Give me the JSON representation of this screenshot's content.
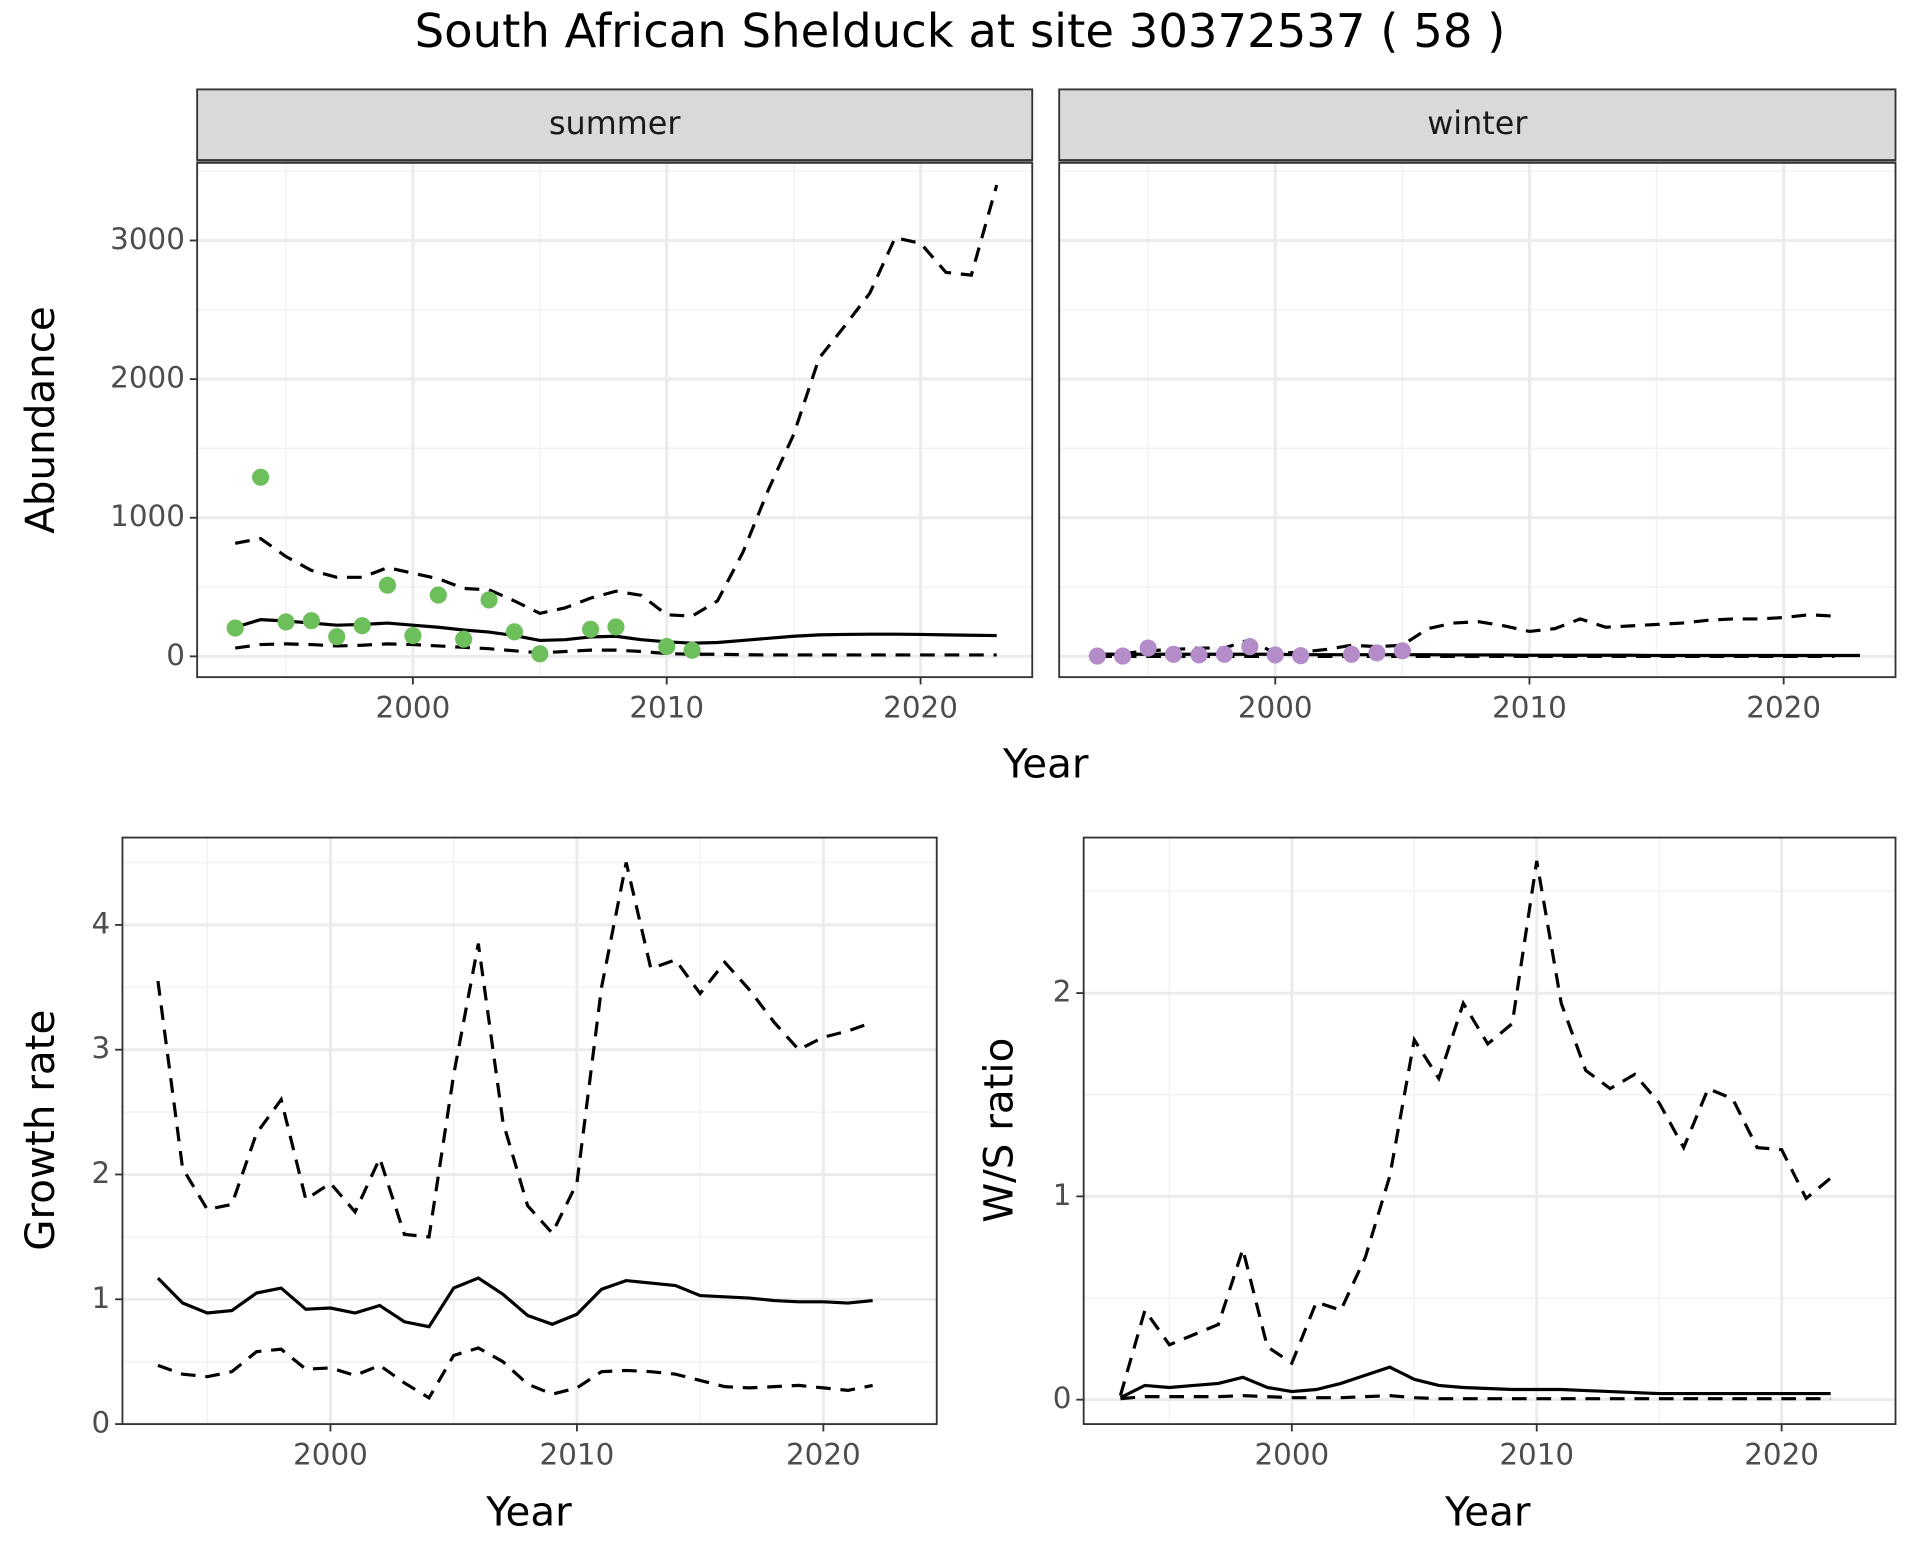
{
  "title": "South African Shelduck at site 30372537 ( 58 )",
  "chart_data": [
    {
      "type": "line",
      "xlabel": "Year",
      "ylabel": "Abundance",
      "x": [
        1993,
        1994,
        1995,
        1996,
        1997,
        1998,
        1999,
        2000,
        2001,
        2002,
        2003,
        2004,
        2005,
        2006,
        2007,
        2008,
        2009,
        2010,
        2011,
        2012,
        2013,
        2014,
        2015,
        2016,
        2017,
        2018,
        2019,
        2020,
        2021,
        2022,
        2023
      ],
      "xlim": [
        1991.5,
        2024.4
      ],
      "xticks": [
        2000,
        2010,
        2020
      ],
      "xminorticks": [
        1995,
        2005,
        2015
      ],
      "ylim": [
        -150,
        3560
      ],
      "yticks": [
        0,
        1000,
        2000,
        3000
      ],
      "yminorticks": [
        500,
        1500,
        2500,
        3500
      ],
      "grid": true,
      "facets": [
        {
          "strip": "summer",
          "series": [
            {
              "mark": "line",
              "dash": false,
              "color": "#000000",
              "values": [
                210,
                265,
                255,
                240,
                225,
                230,
                240,
                225,
                210,
                190,
                175,
                150,
                115,
                120,
                140,
                145,
                120,
                105,
                95,
                100,
                115,
                130,
                145,
                155,
                158,
                160,
                160,
                158,
                155,
                152,
                150
              ]
            },
            {
              "mark": "line",
              "dash": true,
              "color": "#000000",
              "values": [
                815,
                850,
                720,
                620,
                570,
                570,
                640,
                600,
                560,
                490,
                480,
                400,
                310,
                350,
                420,
                470,
                440,
                300,
                290,
                400,
                750,
                1200,
                1600,
                2150,
                2380,
                2620,
                3020,
                2980,
                2770,
                2750,
                3400
              ]
            },
            {
              "mark": "line",
              "dash": true,
              "color": "#000000",
              "values": [
                60,
                85,
                90,
                85,
                75,
                80,
                90,
                85,
                75,
                65,
                55,
                40,
                25,
                35,
                45,
                45,
                35,
                20,
                15,
                15,
                12,
                10,
                10,
                10,
                10,
                10,
                10,
                10,
                10,
                10,
                10
              ]
            },
            {
              "mark": "point",
              "color": "#6dbf5b",
              "values": [
                204,
                1292,
                248,
                257,
                142,
                221,
                513,
                150,
                442,
                124,
                407,
                177,
                18,
                null,
                195,
                212,
                null,
                71,
                44,
                null,
                null,
                null,
                null,
                null,
                null,
                null,
                null,
                null,
                null,
                null,
                null
              ]
            }
          ]
        },
        {
          "strip": "winter",
          "series": [
            {
              "mark": "line",
              "dash": false,
              "color": "#000000",
              "values": [
                15,
                15,
                15,
                15,
                15,
                15,
                15,
                15,
                12,
                12,
                12,
                12,
                12,
                12,
                10,
                10,
                10,
                8,
                8,
                8,
                8,
                8,
                6,
                6,
                6,
                6,
                6,
                6,
                6,
                6,
                6
              ]
            },
            {
              "mark": "line",
              "dash": true,
              "color": "#000000",
              "values": [
                10,
                20,
                40,
                50,
                60,
                60,
                120,
                20,
                30,
                50,
                80,
                70,
                80,
                200,
                240,
                250,
                220,
                180,
                200,
                270,
                210,
                220,
                230,
                240,
                260,
                270,
                270,
                280,
                300,
                290,
                null
              ]
            },
            {
              "mark": "line",
              "dash": true,
              "color": "#000000",
              "values": [
                0,
                0,
                0,
                0,
                0,
                0,
                0,
                0,
                0,
                0,
                0,
                0,
                0,
                0,
                0,
                0,
                0,
                0,
                0,
                0,
                0,
                0,
                0,
                0,
                0,
                0,
                0,
                0,
                0,
                0,
                null
              ]
            },
            {
              "mark": "point",
              "color": "#b38cc9",
              "values": [
                2,
                2,
                60,
                15,
                10,
                15,
                70,
                10,
                5,
                null,
                15,
                25,
                40,
                null,
                null,
                null,
                null,
                null,
                null,
                null,
                null,
                null,
                null,
                null,
                null,
                null,
                null,
                null,
                null,
                null,
                null
              ]
            }
          ]
        }
      ]
    },
    {
      "type": "line",
      "xlabel": "Year",
      "ylabel": "Growth rate",
      "x": [
        1993,
        1994,
        1995,
        1996,
        1997,
        1998,
        1999,
        2000,
        2001,
        2002,
        2003,
        2004,
        2005,
        2006,
        2007,
        2008,
        2009,
        2010,
        2011,
        2012,
        2013,
        2014,
        2015,
        2016,
        2017,
        2018,
        2019,
        2020,
        2021,
        2022
      ],
      "xlim": [
        1991.56,
        2024.6
      ],
      "xticks": [
        2000,
        2010,
        2020
      ],
      "xminorticks": [
        1995,
        2005,
        2015
      ],
      "ylim": [
        0,
        4.7
      ],
      "yticks": [
        0,
        1,
        2,
        3,
        4
      ],
      "yminorticks": [
        0.5,
        1.5,
        2.5,
        3.5,
        4.5
      ],
      "grid": true,
      "series": [
        {
          "mark": "line",
          "dash": false,
          "color": "#000000",
          "values": [
            1.17,
            0.97,
            0.89,
            0.91,
            1.05,
            1.09,
            0.92,
            0.93,
            0.89,
            0.95,
            0.82,
            0.78,
            1.09,
            1.17,
            1.04,
            0.87,
            0.8,
            0.88,
            1.08,
            1.15,
            1.13,
            1.11,
            1.03,
            1.02,
            1.01,
            0.99,
            0.98,
            0.98,
            0.97,
            0.99
          ]
        },
        {
          "mark": "line",
          "dash": true,
          "color": "#000000",
          "values": [
            3.55,
            2.05,
            1.72,
            1.76,
            2.33,
            2.6,
            1.8,
            1.93,
            1.7,
            2.13,
            1.52,
            1.5,
            2.8,
            3.85,
            2.42,
            1.75,
            1.53,
            1.93,
            3.5,
            4.5,
            3.65,
            3.72,
            3.45,
            3.7,
            3.48,
            3.22,
            3.0,
            3.1,
            3.15,
            3.22
          ]
        },
        {
          "mark": "line",
          "dash": true,
          "color": "#000000",
          "values": [
            0.47,
            0.4,
            0.38,
            0.42,
            0.58,
            0.6,
            0.44,
            0.45,
            0.39,
            0.47,
            0.33,
            0.21,
            0.55,
            0.61,
            0.5,
            0.32,
            0.24,
            0.29,
            0.42,
            0.43,
            0.42,
            0.4,
            0.35,
            0.3,
            0.29,
            0.3,
            0.31,
            0.29,
            0.27,
            0.31
          ]
        }
      ]
    },
    {
      "type": "line",
      "xlabel": "Year",
      "ylabel": "W/S ratio",
      "x": [
        1993,
        1994,
        1995,
        1996,
        1997,
        1998,
        1999,
        2000,
        2001,
        2002,
        2003,
        2004,
        2005,
        2006,
        2007,
        2008,
        2009,
        2010,
        2011,
        2012,
        2013,
        2014,
        2015,
        2016,
        2017,
        2018,
        2019,
        2020,
        2021,
        2022
      ],
      "xlim": [
        1991.5,
        2024.65
      ],
      "xticks": [
        2000,
        2010,
        2020
      ],
      "xminorticks": [
        1995,
        2005,
        2015
      ],
      "ylim": [
        -0.12,
        2.765
      ],
      "yticks": [
        0,
        1,
        2
      ],
      "yminorticks": [
        0.5,
        1.5,
        2.5
      ],
      "grid": true,
      "series": [
        {
          "mark": "line",
          "dash": false,
          "color": "#000000",
          "values": [
            0.01,
            0.07,
            0.06,
            0.07,
            0.08,
            0.11,
            0.06,
            0.04,
            0.05,
            0.08,
            0.12,
            0.16,
            0.1,
            0.07,
            0.06,
            0.055,
            0.05,
            0.05,
            0.05,
            0.045,
            0.04,
            0.035,
            0.03,
            0.03,
            0.03,
            0.03,
            0.03,
            0.03,
            0.03,
            0.03
          ]
        },
        {
          "mark": "line",
          "dash": true,
          "color": "#000000",
          "values": [
            0.02,
            0.44,
            0.27,
            0.32,
            0.37,
            0.74,
            0.26,
            0.18,
            0.48,
            0.44,
            0.7,
            1.1,
            1.77,
            1.58,
            1.95,
            1.75,
            1.85,
            2.65,
            1.95,
            1.62,
            1.53,
            1.6,
            1.46,
            1.24,
            1.53,
            1.48,
            1.24,
            1.23,
            0.99,
            1.09
          ]
        },
        {
          "mark": "line",
          "dash": true,
          "color": "#000000",
          "values": [
            0.005,
            0.015,
            0.015,
            0.015,
            0.015,
            0.02,
            0.015,
            0.01,
            0.01,
            0.01,
            0.015,
            0.02,
            0.01,
            0.005,
            0.005,
            0.005,
            0.005,
            0.005,
            0.005,
            0.005,
            0.005,
            0.005,
            0.005,
            0.005,
            0.005,
            0.005,
            0.005,
            0.005,
            0.005,
            0.005
          ]
        }
      ]
    }
  ]
}
